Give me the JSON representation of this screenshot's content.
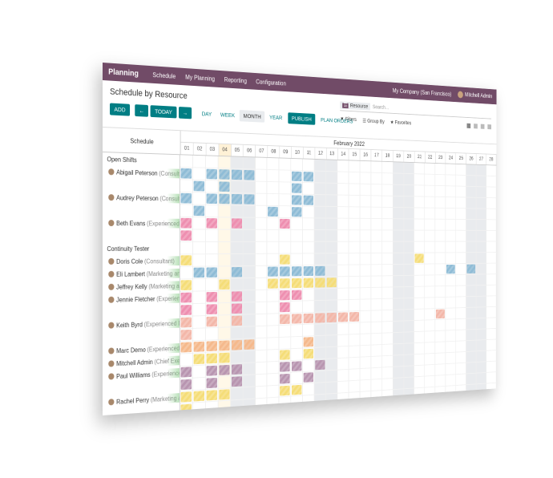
{
  "navbar": {
    "app": "Planning",
    "menu": [
      "Schedule",
      "My Planning",
      "Reporting",
      "Configuration"
    ],
    "company": "My Company (San Francisco)",
    "user": "Mitchell Admin"
  },
  "control": {
    "title": "Schedule by Resource",
    "add": "ADD",
    "today": "TODAY",
    "scales": [
      "DAY",
      "WEEK",
      "MONTH",
      "YEAR"
    ],
    "publish": "PUBLISH",
    "plan_orders": "PLAN ORDERS",
    "facet": "Resource",
    "search_placeholder": "Search...",
    "filters": "Filters",
    "group_by": "Group By",
    "favorites": "Favorites"
  },
  "grid": {
    "header": "Schedule",
    "month": "February 2022",
    "days": [
      "01",
      "02",
      "03",
      "04",
      "05",
      "06",
      "07",
      "08",
      "09",
      "10",
      "11",
      "12",
      "13",
      "14",
      "15",
      "16",
      "17",
      "18",
      "19",
      "20",
      "21",
      "22",
      "23",
      "24",
      "25",
      "26",
      "27",
      "28"
    ],
    "groups": [
      {
        "name": "Open Shifts",
        "resources": [
          {
            "name": "Abigail Peterson",
            "role": "(Consultant)"
          },
          {
            "name": "Audrey Peterson",
            "role": "(Consultant)"
          },
          {
            "name": "Beth Evans",
            "role": "(Experienced Developer)"
          }
        ]
      },
      {
        "name": "Continuity Tester",
        "resources": [
          {
            "name": "Doris Cole",
            "role": "(Consultant)"
          },
          {
            "name": "Eli Lambert",
            "role": "(Marketing and Commun"
          },
          {
            "name": "Jeffrey Kelly",
            "role": "(Marketing and Comm"
          },
          {
            "name": "Jennie Fletcher",
            "role": "(Experienced Develo"
          },
          {
            "name": "Keith Byrd",
            "role": "(Experienced Developer)"
          },
          {
            "name": "Marc Demo",
            "role": "(Experienced Developer)"
          },
          {
            "name": "Mitchell Admin",
            "role": "(Chief Executive Offic"
          },
          {
            "name": "Paul Williams",
            "role": "(Experienced Developer)"
          },
          {
            "name": "Rachel Perry",
            "role": "(Marketing and Commun"
          }
        ]
      }
    ]
  }
}
